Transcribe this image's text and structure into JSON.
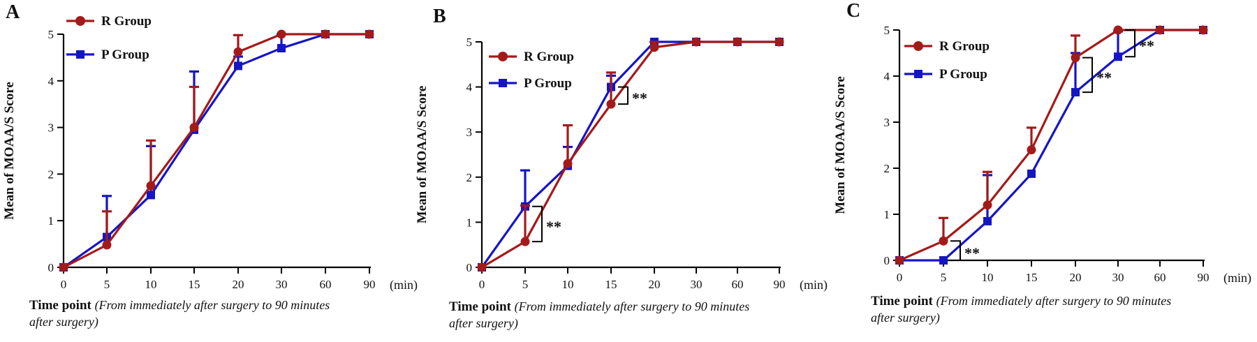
{
  "figure": {
    "x_unit": "(min)",
    "xlabel_main": "Time point",
    "xlabel_note_line1": "(From immediately after surgery to 90 minutes",
    "xlabel_note_line2": "after surgery)",
    "ylabel": "Mean of MOAA/S Score"
  },
  "colors": {
    "R Group": "#a31a1a",
    "P Group": "#1515c4"
  },
  "chart_data": [
    {
      "panel": "A",
      "type": "line",
      "categories": [
        "0",
        "5",
        "10",
        "15",
        "20",
        "30",
        "60",
        "90"
      ],
      "ylim": [
        0,
        5
      ],
      "yticks": [
        0,
        1,
        2,
        3,
        4,
        5
      ],
      "legend_position": "top-left",
      "series": [
        {
          "name": "R Group",
          "marker": "circle",
          "values": [
            0,
            0.48,
            1.75,
            3.0,
            4.62,
            5.0,
            5.0,
            5.0
          ],
          "error": [
            0,
            0.72,
            0.97,
            0.87,
            0.36,
            0,
            0,
            0
          ]
        },
        {
          "name": "P Group",
          "marker": "square",
          "values": [
            0,
            0.65,
            1.55,
            2.95,
            4.32,
            4.7,
            5.0,
            5.0
          ],
          "error": [
            0,
            0.88,
            1.05,
            1.25,
            0.2,
            0.3,
            0,
            0
          ]
        }
      ],
      "significance": []
    },
    {
      "panel": "B",
      "type": "line",
      "categories": [
        "0",
        "5",
        "10",
        "15",
        "20",
        "30",
        "60",
        "90"
      ],
      "ylim": [
        0,
        5
      ],
      "yticks": [
        0,
        1,
        2,
        3,
        4,
        5
      ],
      "legend_position": "top-left",
      "series": [
        {
          "name": "R Group",
          "marker": "circle",
          "values": [
            0,
            0.57,
            2.3,
            3.62,
            4.88,
            5.0,
            5.0,
            5.0
          ],
          "error": [
            0,
            0.8,
            0.85,
            0.7,
            0.12,
            0,
            0,
            0
          ]
        },
        {
          "name": "P Group",
          "marker": "square",
          "values": [
            0,
            1.35,
            2.25,
            4.0,
            5.0,
            5.0,
            5.0,
            5.0
          ],
          "error": [
            0,
            0.8,
            0.42,
            0.25,
            0,
            0,
            0,
            0
          ]
        }
      ],
      "significance": [
        {
          "index": 1,
          "label": "**"
        },
        {
          "index": 3,
          "label": "**"
        }
      ]
    },
    {
      "panel": "C",
      "type": "line",
      "categories": [
        "0",
        "5",
        "10",
        "15",
        "20",
        "30",
        "60",
        "90"
      ],
      "ylim": [
        0,
        5
      ],
      "yticks": [
        0,
        1,
        2,
        3,
        4,
        5
      ],
      "legend_position": "top-left",
      "series": [
        {
          "name": "R Group",
          "marker": "circle",
          "values": [
            0,
            0.42,
            1.2,
            2.4,
            4.4,
            5.0,
            5.0,
            5.0
          ],
          "error": [
            0,
            0.5,
            0.72,
            0.48,
            0.48,
            0,
            0,
            0
          ]
        },
        {
          "name": "P Group",
          "marker": "square",
          "values": [
            0,
            0,
            0.85,
            1.88,
            3.65,
            4.42,
            5.0,
            5.0
          ],
          "error": [
            0,
            0,
            1.0,
            0,
            0.85,
            0.55,
            0,
            0
          ]
        }
      ],
      "significance": [
        {
          "index": 1,
          "label": "**"
        },
        {
          "index": 4,
          "label": "**"
        },
        {
          "index": 5,
          "label": "**"
        }
      ]
    }
  ]
}
